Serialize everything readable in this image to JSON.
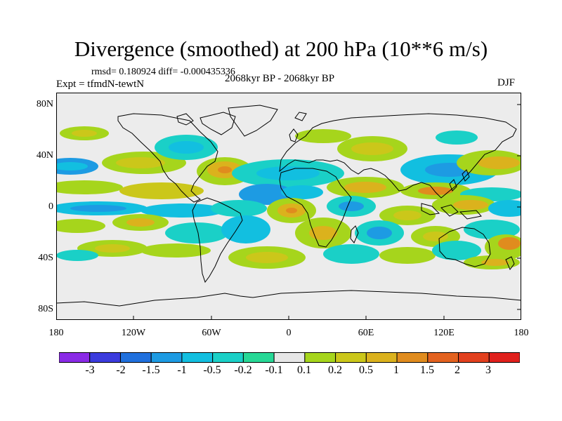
{
  "title": "Divergence (smoothed) at 200 hPa (10**6 m/s)",
  "stats": "rmsd= 0.180924 diff= -0.000435336",
  "experiment": "Expt = tfmdN-tewtN",
  "period": "2068kyr BP - 2068kyr BP",
  "season": "DJF",
  "map": {
    "y_axis_labels": [
      "80N",
      "40N",
      "0",
      "40S",
      "80S"
    ],
    "x_axis_labels": [
      "180",
      "120W",
      "60W",
      "0",
      "60E",
      "120E",
      "180"
    ],
    "background_color": "#ececec"
  },
  "colorbar": {
    "labels": [
      "-3",
      "-2",
      "-1.5",
      "-1",
      "-0.5",
      "-0.2",
      "-0.1",
      "0.1",
      "0.2",
      "0.5",
      "1",
      "1.5",
      "2",
      "3"
    ],
    "colors": [
      "#8a2ae6",
      "#3b3bdd",
      "#2070dd",
      "#1d9be3",
      "#12bfe0",
      "#1ad0c7",
      "#27d896",
      "#e6e6e6",
      "#a6d51c",
      "#cbc71a",
      "#dbb21d",
      "#e08c1e",
      "#e3621f",
      "#e2401e",
      "#e0201c"
    ]
  }
}
